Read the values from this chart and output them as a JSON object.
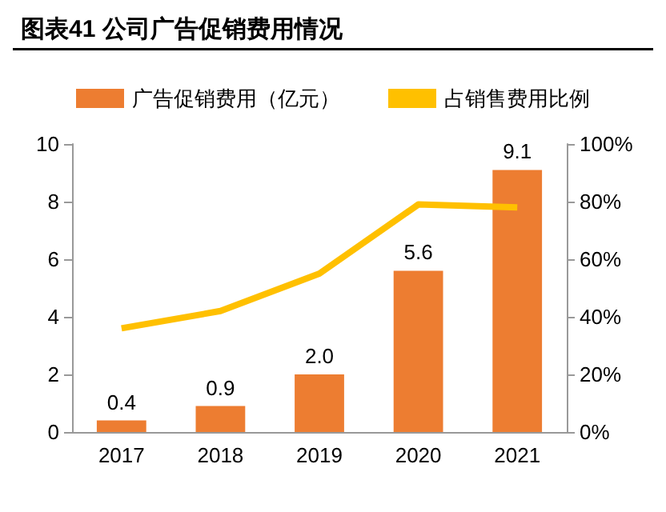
{
  "chart_data": {
    "type": "bar",
    "title": "图表41 公司广告促销费用情况",
    "categories": [
      "2017",
      "2018",
      "2019",
      "2020",
      "2021"
    ],
    "series": [
      {
        "name": "广告促销费用（亿元）",
        "color": "#ed7d31",
        "values": [
          0.4,
          0.9,
          2.0,
          5.6,
          9.1
        ],
        "value_labels": [
          "0.4",
          "0.9",
          "2.0",
          "5.6",
          "9.1"
        ]
      },
      {
        "name": "占销售费用比例",
        "type": "line",
        "axis": "y2",
        "color": "#ffc000",
        "values": [
          36,
          42,
          55,
          79,
          78
        ]
      }
    ],
    "ylim": [
      0,
      10
    ],
    "yticks": [
      0,
      2,
      4,
      6,
      8,
      10
    ],
    "y2lim": [
      0,
      100
    ],
    "y2ticks": [
      {
        "value": 0,
        "label": "0%"
      },
      {
        "value": 20,
        "label": "20%"
      },
      {
        "value": 40,
        "label": "40%"
      },
      {
        "value": 60,
        "label": "60%"
      },
      {
        "value": 80,
        "label": "80%"
      },
      {
        "value": 100,
        "label": "100%"
      }
    ],
    "legend": "top",
    "grid": false,
    "marker": "none",
    "line_style": "solid"
  }
}
